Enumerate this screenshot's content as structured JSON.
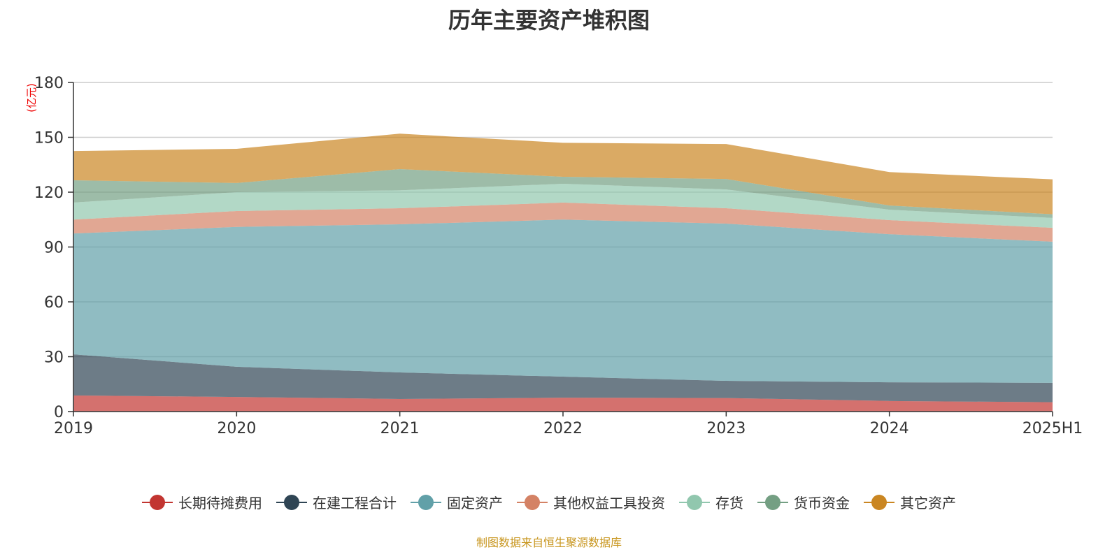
{
  "chart_data": {
    "type": "area",
    "stacked": true,
    "title": "历年主要资产堆积图",
    "ylabel": "(亿元)",
    "ylim": [
      0,
      180
    ],
    "yticks": [
      0,
      30,
      60,
      90,
      120,
      150,
      180
    ],
    "grid": true,
    "legend_position": "bottom",
    "categories": [
      "2019",
      "2020",
      "2021",
      "2022",
      "2023",
      "2024",
      "2025H1"
    ],
    "series": [
      {
        "name": "长期待摊费用",
        "color": "#c23531",
        "values": [
          8.8,
          8.0,
          6.9,
          7.6,
          7.4,
          5.8,
          5.1
        ]
      },
      {
        "name": "在建工程合计",
        "color": "#2f4554",
        "values": [
          22.5,
          16.5,
          14.5,
          11.5,
          9.4,
          10.2,
          10.6
        ]
      },
      {
        "name": "固定资产",
        "color": "#61a0a8",
        "values": [
          66.1,
          76.5,
          81.0,
          85.9,
          86.0,
          81.0,
          77.2
        ]
      },
      {
        "name": "其他权益工具投资",
        "color": "#d48265",
        "values": [
          7.6,
          8.7,
          8.8,
          9.3,
          8.4,
          7.7,
          7.6
        ]
      },
      {
        "name": "存货",
        "color": "#91c7ae",
        "values": [
          9.3,
          10.3,
          9.8,
          10.3,
          10.3,
          5.7,
          5.4
        ]
      },
      {
        "name": "货币资金",
        "color": "#749f83",
        "values": [
          12.2,
          5.0,
          11.6,
          3.8,
          5.7,
          2.3,
          2.0
        ]
      },
      {
        "name": "其它资产",
        "color": "#ca8622",
        "values": [
          16.0,
          18.7,
          19.4,
          18.6,
          19.1,
          18.3,
          19.1
        ]
      }
    ]
  },
  "source": "制图数据来自恒生聚源数据库"
}
